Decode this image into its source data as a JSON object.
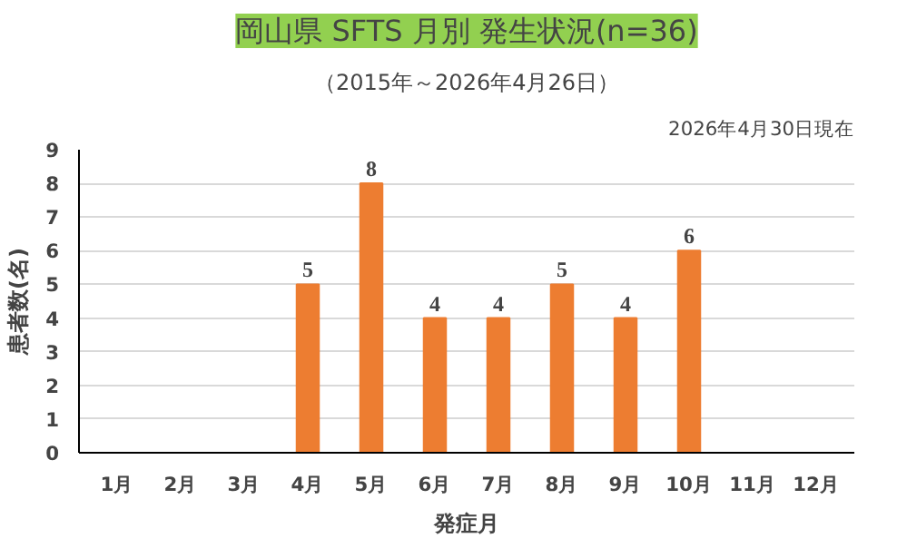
{
  "chart_data": {
    "type": "bar",
    "title": "岡山県 SFTS 月別 発生状況(n=36)",
    "subtitle": "（2015年～2026年4月26日）",
    "annotations": [
      "2026年4月30日現在"
    ],
    "xlabel": "発症月",
    "ylabel": "患者数(名)",
    "categories": [
      "1月",
      "2月",
      "3月",
      "4月",
      "5月",
      "6月",
      "7月",
      "8月",
      "9月",
      "10月",
      "11月",
      "12月"
    ],
    "values": [
      0,
      0,
      0,
      5,
      8,
      4,
      4,
      5,
      4,
      6,
      0,
      0
    ],
    "value_labels": [
      null,
      null,
      null,
      "5",
      "8",
      "4",
      "4",
      "5",
      "4",
      "6",
      null,
      null
    ],
    "color": "#ed7d31",
    "ylim": [
      0,
      9
    ],
    "yticks": [
      0,
      1,
      2,
      3,
      4,
      5,
      6,
      7,
      8,
      9
    ],
    "grid": "y"
  }
}
